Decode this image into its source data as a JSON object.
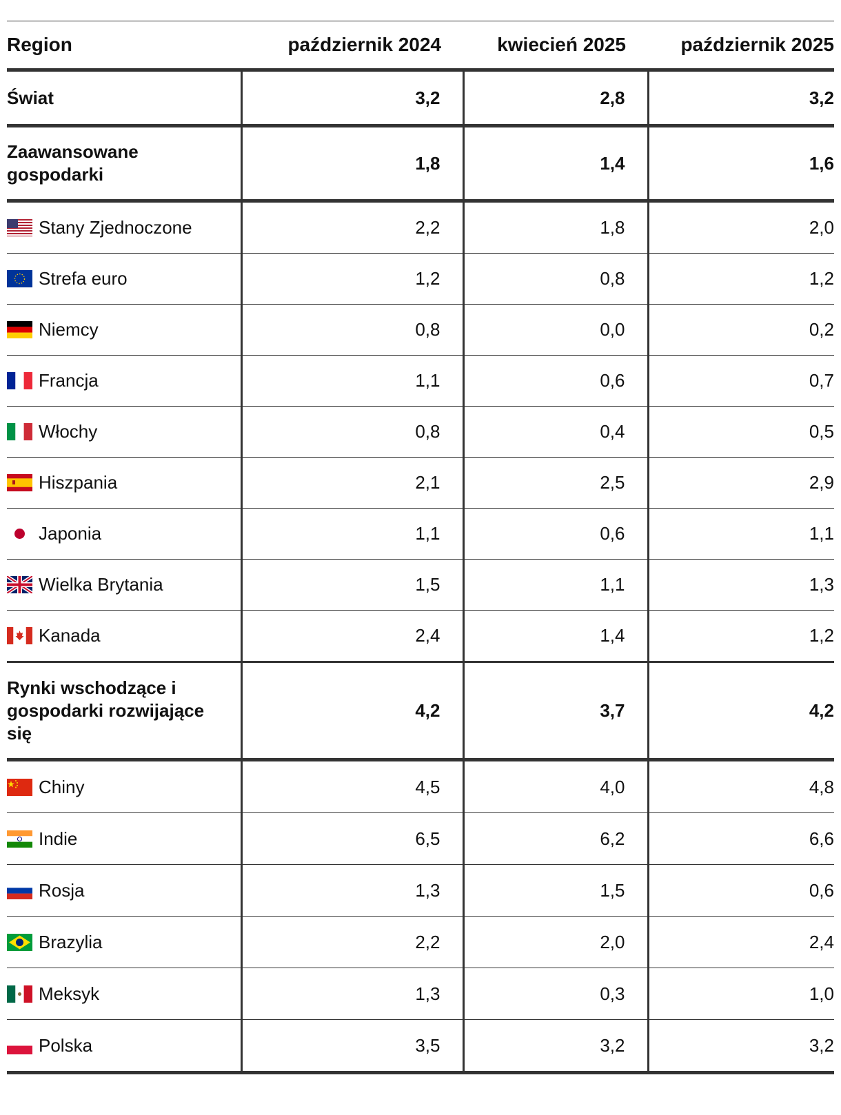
{
  "table": {
    "headers": [
      "Region",
      "październik 2024",
      "kwiecień 2025",
      "październik 2025"
    ],
    "rows": [
      {
        "label": "Świat",
        "group": true,
        "v1": "3,2",
        "v2": "2,8",
        "v3": "3,2"
      },
      {
        "label": "Zaawansowane gospodarki",
        "group": true,
        "v1": "1,8",
        "v2": "1,4",
        "v3": "1,6"
      },
      {
        "label": "Stany Zjednoczone",
        "flag": "us-flag-icon",
        "v1": "2,2",
        "v2": "1,8",
        "v3": "2,0"
      },
      {
        "label": "Strefa euro",
        "flag": "eu-flag-icon",
        "v1": "1,2",
        "v2": "0,8",
        "v3": "1,2"
      },
      {
        "label": "Niemcy",
        "flag": "germany-flag-icon",
        "v1": "0,8",
        "v2": "0,0",
        "v3": "0,2"
      },
      {
        "label": "Francja",
        "flag": "france-flag-icon",
        "v1": "1,1",
        "v2": "0,6",
        "v3": "0,7"
      },
      {
        "label": "Włochy",
        "flag": "italy-flag-icon",
        "v1": "0,8",
        "v2": "0,4",
        "v3": "0,5"
      },
      {
        "label": "Hiszpania",
        "flag": "spain-flag-icon",
        "v1": "2,1",
        "v2": "2,5",
        "v3": "2,9"
      },
      {
        "label": "Japonia",
        "flag": "japan-flag-icon",
        "v1": "1,1",
        "v2": "0,6",
        "v3": "1,1"
      },
      {
        "label": "Wielka Brytania",
        "flag": "uk-flag-icon",
        "v1": "1,5",
        "v2": "1,1",
        "v3": "1,3"
      },
      {
        "label": "Kanada",
        "flag": "canada-flag-icon",
        "v1": "2,4",
        "v2": "1,4",
        "v3": "1,2"
      },
      {
        "label": "Rynki wschodzące i gospodarki rozwijające się",
        "group": true,
        "v1": "4,2",
        "v2": "3,7",
        "v3": "4,2"
      },
      {
        "label": "Chiny",
        "flag": "china-flag-icon",
        "v1": "4,5",
        "v2": "4,0",
        "v3": "4,8"
      },
      {
        "label": "Indie",
        "flag": "india-flag-icon",
        "v1": "6,5",
        "v2": "6,2",
        "v3": "6,6"
      },
      {
        "label": "Rosja",
        "flag": "russia-flag-icon",
        "v1": "1,3",
        "v2": "1,5",
        "v3": "0,6"
      },
      {
        "label": "Brazylia",
        "flag": "brazil-flag-icon",
        "v1": "2,2",
        "v2": "2,0",
        "v3": "2,4"
      },
      {
        "label": "Meksyk",
        "flag": "mexico-flag-icon",
        "v1": "1,3",
        "v2": "0,3",
        "v3": "1,0"
      },
      {
        "label": "Polska",
        "flag": "poland-flag-icon",
        "v1": "3,5",
        "v2": "3,2",
        "v3": "3,2"
      }
    ]
  }
}
